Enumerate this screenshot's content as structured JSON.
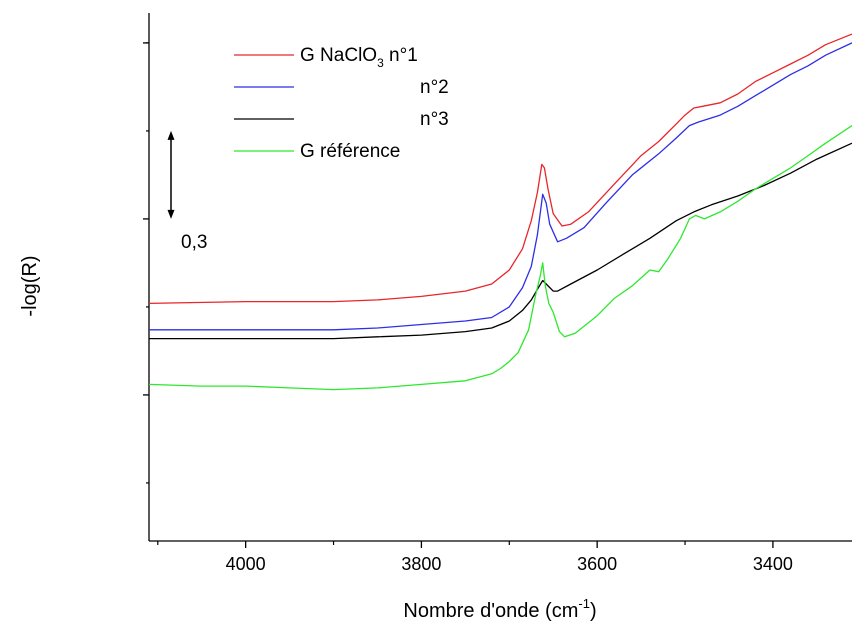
{
  "chart_data": {
    "type": "line",
    "xlabel": "Nombre d'onde (cm",
    "xlabel_sup": "-1",
    "xlabel_close": ")",
    "ylabel": "-log(R)",
    "xlim": [
      4110,
      3310
    ],
    "ylim": [
      0,
      3
    ],
    "x_reversed": true,
    "x_ticks": [
      4000,
      3800,
      3600,
      3400
    ],
    "x_tick_labels": [
      "4000",
      "3800",
      "3600",
      "3400"
    ],
    "y_minor_ticks": [
      0.33,
      1.33,
      2.33,
      2.83
    ],
    "y_major_ticks": [
      0.83,
      1.83,
      2.83
    ],
    "grid": false,
    "legend_position": "top-left",
    "scale_bar": {
      "label": "0,3",
      "y_from": 1.83,
      "y_to": 2.33
    },
    "series": [
      {
        "name": "G NaClO3 n°1",
        "legend_text": "G NaClO",
        "legend_sub": "3",
        "legend_suffix": " n°1",
        "color": "#e8262b",
        "points": [
          [
            4110,
            1.35
          ],
          [
            4000,
            1.36
          ],
          [
            3900,
            1.36
          ],
          [
            3850,
            1.37
          ],
          [
            3800,
            1.39
          ],
          [
            3750,
            1.42
          ],
          [
            3720,
            1.46
          ],
          [
            3700,
            1.54
          ],
          [
            3685,
            1.66
          ],
          [
            3675,
            1.82
          ],
          [
            3668,
            1.98
          ],
          [
            3663,
            2.14
          ],
          [
            3660,
            2.12
          ],
          [
            3656,
            2.0
          ],
          [
            3650,
            1.86
          ],
          [
            3640,
            1.79
          ],
          [
            3630,
            1.8
          ],
          [
            3610,
            1.87
          ],
          [
            3580,
            2.03
          ],
          [
            3550,
            2.19
          ],
          [
            3530,
            2.27
          ],
          [
            3510,
            2.37
          ],
          [
            3500,
            2.42
          ],
          [
            3490,
            2.46
          ],
          [
            3480,
            2.47
          ],
          [
            3460,
            2.49
          ],
          [
            3440,
            2.54
          ],
          [
            3420,
            2.61
          ],
          [
            3400,
            2.66
          ],
          [
            3380,
            2.71
          ],
          [
            3360,
            2.76
          ],
          [
            3340,
            2.82
          ],
          [
            3310,
            2.88
          ]
        ]
      },
      {
        "name": "n°2",
        "legend_text": "n°2",
        "color": "#2e2ee8",
        "points": [
          [
            4110,
            1.2
          ],
          [
            4000,
            1.2
          ],
          [
            3900,
            1.2
          ],
          [
            3850,
            1.21
          ],
          [
            3800,
            1.23
          ],
          [
            3750,
            1.25
          ],
          [
            3720,
            1.27
          ],
          [
            3700,
            1.33
          ],
          [
            3685,
            1.44
          ],
          [
            3675,
            1.56
          ],
          [
            3668,
            1.74
          ],
          [
            3662,
            1.97
          ],
          [
            3658,
            1.92
          ],
          [
            3654,
            1.8
          ],
          [
            3645,
            1.7
          ],
          [
            3635,
            1.72
          ],
          [
            3615,
            1.78
          ],
          [
            3590,
            1.92
          ],
          [
            3560,
            2.08
          ],
          [
            3530,
            2.2
          ],
          [
            3510,
            2.29
          ],
          [
            3495,
            2.36
          ],
          [
            3485,
            2.38
          ],
          [
            3460,
            2.42
          ],
          [
            3440,
            2.47
          ],
          [
            3420,
            2.53
          ],
          [
            3400,
            2.59
          ],
          [
            3380,
            2.65
          ],
          [
            3360,
            2.7
          ],
          [
            3340,
            2.76
          ],
          [
            3310,
            2.83
          ]
        ]
      },
      {
        "name": "n°3",
        "legend_text": "n°3",
        "color": "#000000",
        "points": [
          [
            4110,
            1.15
          ],
          [
            4000,
            1.15
          ],
          [
            3900,
            1.15
          ],
          [
            3850,
            1.16
          ],
          [
            3800,
            1.17
          ],
          [
            3750,
            1.19
          ],
          [
            3720,
            1.21
          ],
          [
            3700,
            1.25
          ],
          [
            3685,
            1.31
          ],
          [
            3675,
            1.37
          ],
          [
            3668,
            1.43
          ],
          [
            3662,
            1.48
          ],
          [
            3658,
            1.46
          ],
          [
            3650,
            1.42
          ],
          [
            3645,
            1.42
          ],
          [
            3630,
            1.46
          ],
          [
            3600,
            1.54
          ],
          [
            3570,
            1.63
          ],
          [
            3540,
            1.72
          ],
          [
            3510,
            1.82
          ],
          [
            3490,
            1.87
          ],
          [
            3470,
            1.91
          ],
          [
            3440,
            1.96
          ],
          [
            3410,
            2.02
          ],
          [
            3380,
            2.09
          ],
          [
            3350,
            2.17
          ],
          [
            3310,
            2.26
          ]
        ]
      },
      {
        "name": "G référence",
        "legend_text": "G référence",
        "color": "#2ee82e",
        "points": [
          [
            4110,
            0.89
          ],
          [
            4050,
            0.88
          ],
          [
            4000,
            0.88
          ],
          [
            3950,
            0.87
          ],
          [
            3900,
            0.86
          ],
          [
            3850,
            0.87
          ],
          [
            3800,
            0.89
          ],
          [
            3750,
            0.91
          ],
          [
            3720,
            0.95
          ],
          [
            3710,
            0.98
          ],
          [
            3700,
            1.02
          ],
          [
            3690,
            1.07
          ],
          [
            3678,
            1.2
          ],
          [
            3670,
            1.4
          ],
          [
            3665,
            1.5
          ],
          [
            3662,
            1.58
          ],
          [
            3659,
            1.45
          ],
          [
            3655,
            1.35
          ],
          [
            3650,
            1.3
          ],
          [
            3643,
            1.19
          ],
          [
            3637,
            1.16
          ],
          [
            3625,
            1.18
          ],
          [
            3600,
            1.28
          ],
          [
            3580,
            1.38
          ],
          [
            3560,
            1.45
          ],
          [
            3540,
            1.54
          ],
          [
            3530,
            1.53
          ],
          [
            3520,
            1.6
          ],
          [
            3505,
            1.72
          ],
          [
            3495,
            1.83
          ],
          [
            3488,
            1.85
          ],
          [
            3478,
            1.83
          ],
          [
            3460,
            1.87
          ],
          [
            3440,
            1.93
          ],
          [
            3420,
            2.0
          ],
          [
            3400,
            2.06
          ],
          [
            3380,
            2.12
          ],
          [
            3360,
            2.19
          ],
          [
            3340,
            2.26
          ],
          [
            3310,
            2.36
          ]
        ]
      }
    ]
  }
}
